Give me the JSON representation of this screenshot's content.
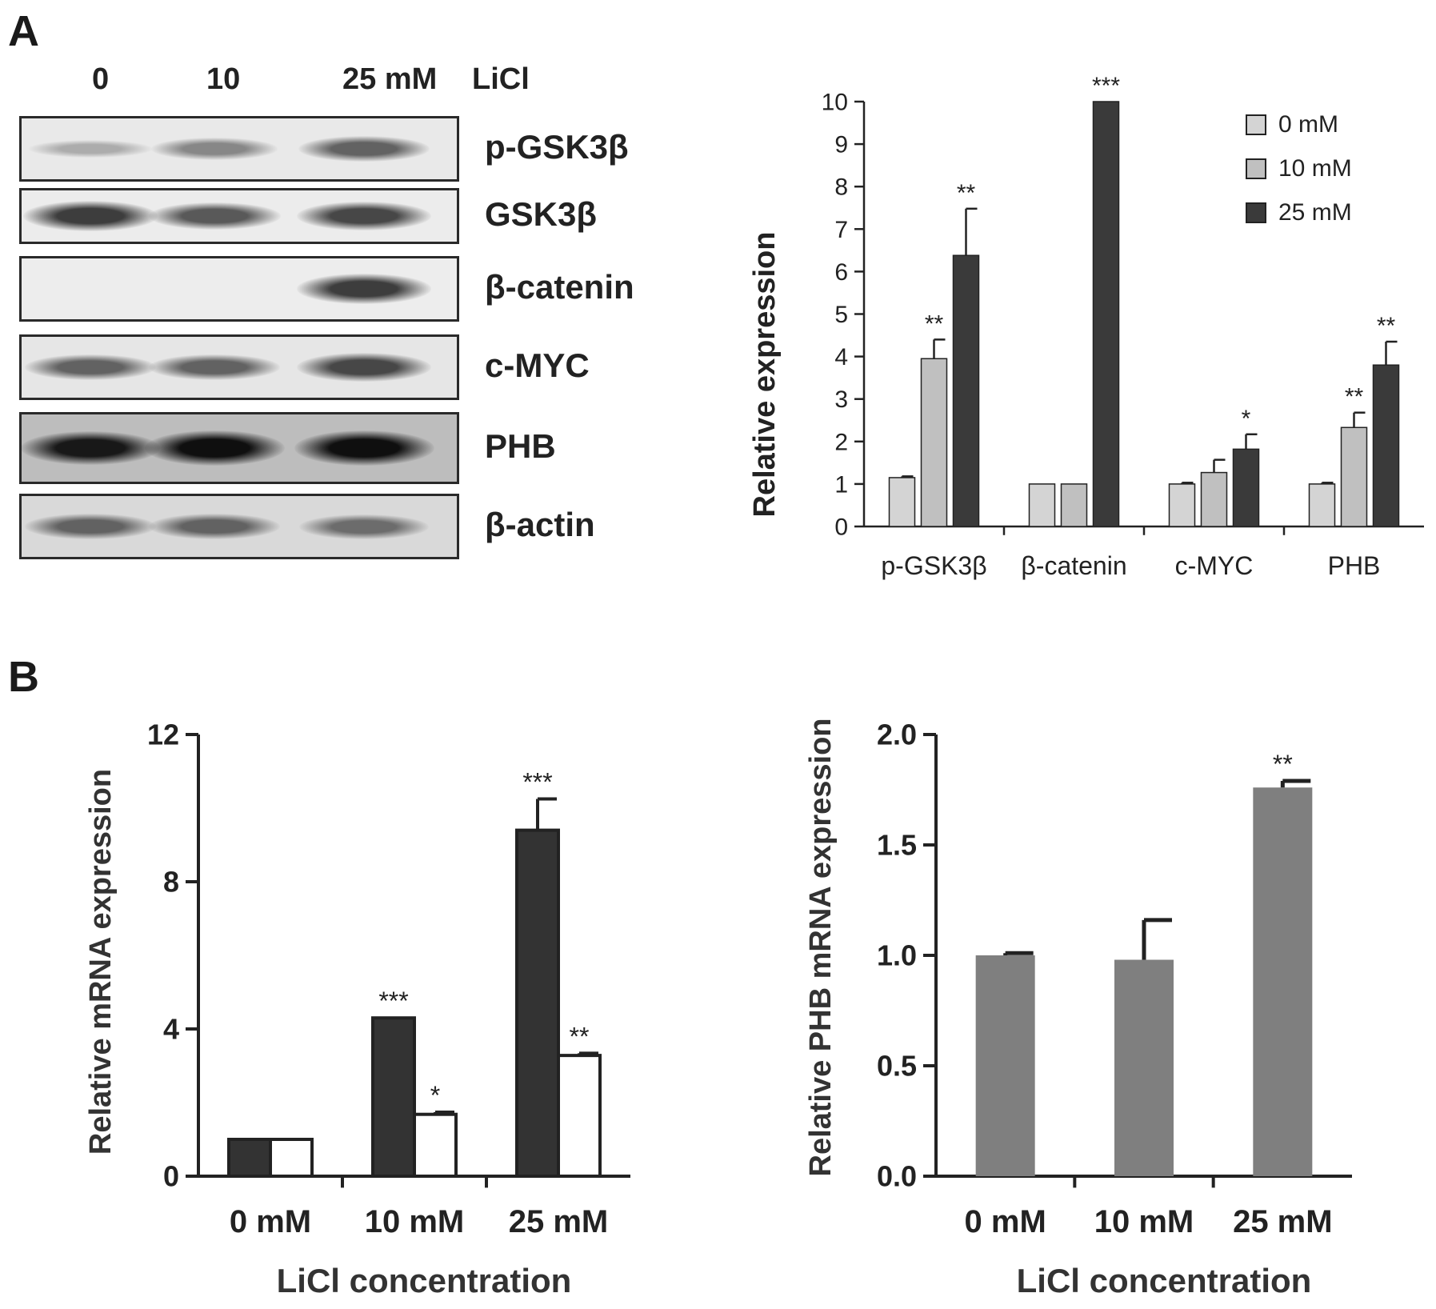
{
  "panels": {
    "a": "A",
    "b": "B"
  },
  "blot": {
    "lane_labels": [
      "0",
      "10",
      "25 mM"
    ],
    "treatment_label": "LiCl",
    "rows": [
      {
        "label": "p-GSK3β",
        "shade": [
          0.15,
          0.35,
          0.55
        ]
      },
      {
        "label": "GSK3β",
        "shade": [
          0.75,
          0.6,
          0.7
        ]
      },
      {
        "label": "β-catenin",
        "shade": [
          0.0,
          0.0,
          0.75
        ]
      },
      {
        "label": "c-MYC",
        "shade": [
          0.55,
          0.55,
          0.7
        ]
      },
      {
        "label": "PHB",
        "shade": [
          0.95,
          1.0,
          1.0
        ]
      },
      {
        "label": "β-actin",
        "shade": [
          0.55,
          0.55,
          0.5
        ]
      }
    ]
  },
  "chart_data": [
    {
      "type": "bar",
      "title": "",
      "xlabel": "",
      "ylabel": "Relative expression",
      "ylim": [
        0,
        10
      ],
      "yticks": [
        0,
        1,
        2,
        3,
        4,
        5,
        6,
        7,
        8,
        9,
        10
      ],
      "categories": [
        "p-GSK3β",
        "β-catenin",
        "c-MYC",
        "PHB"
      ],
      "series": [
        {
          "name": "0 mM",
          "color": "#d4d4d4",
          "values": [
            1.15,
            1.0,
            1.0,
            1.0
          ],
          "errors": [
            0.03,
            0.0,
            0.03,
            0.03
          ],
          "annotations": [
            "",
            "",
            "",
            ""
          ]
        },
        {
          "name": "10 mM",
          "color": "#c0c0c0",
          "values": [
            3.95,
            1.0,
            1.27,
            2.33
          ],
          "errors": [
            0.45,
            0.0,
            0.3,
            0.35
          ],
          "annotations": [
            "**",
            "",
            "",
            "**"
          ]
        },
        {
          "name": "25 mM",
          "color": "#3a3a3a",
          "values": [
            6.38,
            10.0,
            1.82,
            3.8
          ],
          "errors": [
            1.1,
            0.0,
            0.35,
            0.55
          ],
          "annotations": [
            "**",
            "***",
            "*",
            "**"
          ]
        }
      ],
      "grid": false,
      "legend": "top-right"
    },
    {
      "type": "bar",
      "title": "",
      "xlabel": "LiCl concentration",
      "ylabel": "Relative mRNA expression",
      "ylim": [
        0,
        12
      ],
      "yticks": [
        0,
        4,
        8,
        12
      ],
      "categories": [
        "0 mM",
        "10 mM",
        "25 mM"
      ],
      "series": [
        {
          "color": "#333333",
          "values": [
            1.0,
            4.3,
            9.4
          ],
          "errors": [
            0.0,
            0.0,
            0.85
          ],
          "annotations": [
            "",
            "***",
            "***"
          ]
        },
        {
          "color": "#ffffff",
          "values": [
            1.0,
            1.68,
            3.28
          ],
          "errors": [
            0.0,
            0.06,
            0.06
          ],
          "annotations": [
            "",
            "*",
            "**"
          ]
        }
      ],
      "grid": false,
      "legend": "none"
    },
    {
      "type": "bar",
      "title": "",
      "xlabel": "LiCl concentration",
      "ylabel": "Relative PHB mRNA expression",
      "ylim": [
        0,
        2.0
      ],
      "yticks": [
        "0.0",
        "0.5",
        "1.0",
        "1.5",
        "2.0"
      ],
      "categories": [
        "0 mM",
        "10 mM",
        "25 mM"
      ],
      "series": [
        {
          "color": "#7f7f7f",
          "values": [
            1.0,
            0.98,
            1.76
          ],
          "errors": [
            0.01,
            0.18,
            0.03
          ],
          "annotations": [
            "",
            "",
            "**"
          ]
        }
      ],
      "grid": false,
      "legend": "none"
    }
  ]
}
